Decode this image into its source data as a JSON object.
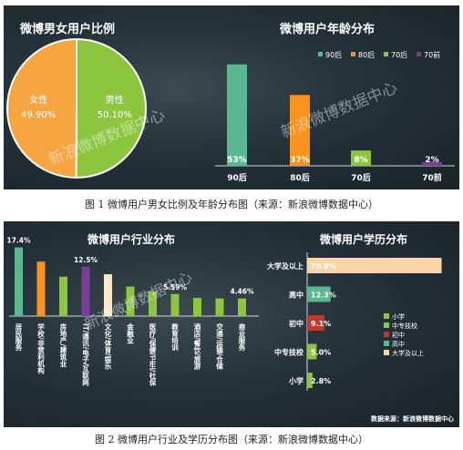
{
  "figure1": {
    "caption": "图 1  微博用户男女比例及年龄分布图（来源：新浪微博数据中心）",
    "watermark": "新浪微博数据中心",
    "colors": {
      "male": "#8cc63f",
      "female": "#f7a541",
      "age90": "#5ab88f",
      "age80": "#f7931e",
      "age70": "#8cc63f",
      "age70before": "#7d3c98"
    }
  },
  "figure2": {
    "caption": "图 2  微博用户行业及学历分布图（来源：新浪微博数据中心）",
    "watermark": "新浪微博数据中心",
    "source_note": "数据来源：新浪微博数据中心",
    "colors": {
      "industry": [
        "#5ab88f",
        "#f7931e",
        "#8cc63f",
        "#7d3c98",
        "#fde9c9",
        "#8cc63f",
        "#8cc63f",
        "#8cc63f",
        "#8cc63f",
        "#8cc63f",
        "#8cc63f"
      ],
      "edu": [
        "#fcd5a5",
        "#5ab88f",
        "#c0392b",
        "#8cc63f",
        "#8cc63f"
      ]
    }
  },
  "chart_data": [
    {
      "type": "pie",
      "title": "微博男女用户比例",
      "categories": [
        "男性",
        "女性"
      ],
      "values": [
        50.1,
        49.9
      ],
      "labels": [
        "50.10%",
        "49.90%"
      ]
    },
    {
      "type": "bar",
      "title": "微博用户年龄分布",
      "categories": [
        "90后",
        "80后",
        "70后",
        "70前"
      ],
      "values": [
        53,
        37,
        8,
        2
      ],
      "labels": [
        "53%",
        "37%",
        "8%",
        "2%"
      ],
      "legend": [
        "90后",
        "80后",
        "70后",
        "70前"
      ],
      "legend_position": "top-right",
      "ylim": [
        0,
        60
      ]
    },
    {
      "type": "bar",
      "title": "微博用户行业分布",
      "categories": [
        "居民服务",
        "学校/非营利机构",
        "房地产/建筑业",
        "IT/通讯/电子/互联网",
        "文化/体育/娱乐",
        "金融业",
        "医疗/保健/卫生/社保",
        "教育培训",
        "酒店/餐饮/旅游",
        "交通/运输/仓储",
        "商业服务"
      ],
      "values": [
        17.4,
        13.8,
        10.0,
        12.5,
        10.6,
        7.5,
        6.3,
        5.59,
        4.6,
        4.46,
        4.46
      ],
      "labels": [
        "17.4%",
        "",
        "",
        "12.5%",
        "",
        "",
        "",
        "5.59%",
        "",
        "",
        "4.46%"
      ],
      "ylim": [
        0,
        18
      ]
    },
    {
      "type": "bar",
      "orientation": "horizontal",
      "title": "微博用户学历分布",
      "categories": [
        "大学及以上",
        "高中",
        "初中",
        "中专技校",
        "小学"
      ],
      "values": [
        70.8,
        12.3,
        9.1,
        5.0,
        2.8
      ],
      "labels": [
        "70.8%",
        "12.3%",
        "9.1%",
        "5.0%",
        "2.8%"
      ],
      "legend": [
        "小学",
        "中专技校",
        "初中",
        "高中",
        "大学及以上"
      ],
      "legend_position": "bottom-right",
      "xlim": [
        0,
        72
      ]
    }
  ]
}
